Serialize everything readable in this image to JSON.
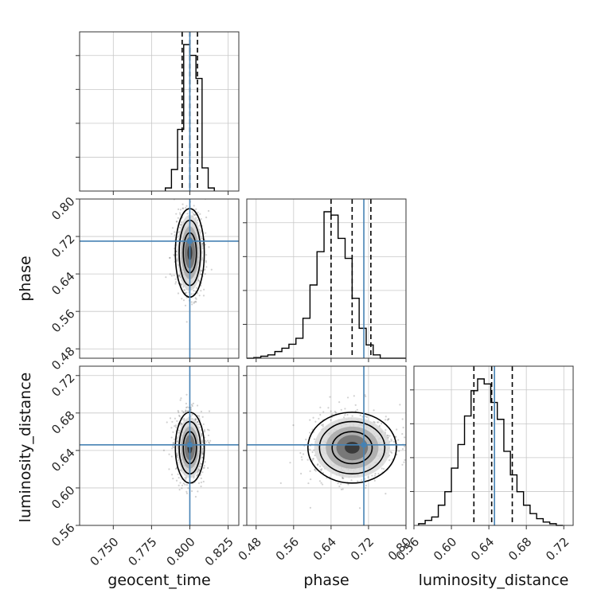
{
  "chart_data": {
    "type": "corner",
    "parameters": [
      "geocent_time",
      "phase",
      "luminosity_distance"
    ],
    "ranges": {
      "geocent_time": [
        0.728,
        0.832
      ],
      "phase": [
        0.46,
        0.8
      ],
      "luminosity_distance": [
        0.56,
        0.73
      ]
    },
    "ticks": {
      "geocent_time": [
        "0.750",
        "0.775",
        "0.800",
        "0.825"
      ],
      "phase": [
        "0.48",
        "0.56",
        "0.64",
        "0.72",
        "0.80"
      ],
      "luminosity_distance": [
        "0.56",
        "0.60",
        "0.64",
        "0.68",
        "0.72"
      ]
    },
    "truths": {
      "geocent_time": 0.8,
      "phase": 0.71,
      "luminosity_distance": 0.646
    },
    "quantiles": {
      "geocent_time": [
        0.795,
        0.8,
        0.805
      ],
      "phase": [
        0.64,
        0.685,
        0.725
      ],
      "luminosity_distance": [
        0.624,
        0.643,
        0.665
      ]
    },
    "histograms": {
      "geocent_time": {
        "bins": [
          0.784,
          0.788,
          0.792,
          0.796,
          0.8,
          0.804,
          0.808,
          0.812,
          0.816
        ],
        "counts": [
          2,
          14,
          40,
          95,
          88,
          73,
          15,
          2
        ]
      },
      "phase": {
        "bins": [
          0.46,
          0.475,
          0.49,
          0.505,
          0.52,
          0.535,
          0.55,
          0.565,
          0.58,
          0.595,
          0.61,
          0.625,
          0.64,
          0.655,
          0.67,
          0.685,
          0.7,
          0.715,
          0.73,
          0.745,
          0.76,
          0.775,
          0.79,
          0.8
        ],
        "counts": [
          0,
          1,
          3,
          5,
          10,
          15,
          21,
          30,
          60,
          110,
          160,
          220,
          215,
          180,
          150,
          90,
          45,
          20,
          5,
          0,
          0,
          0,
          0
        ]
      },
      "luminosity_distance": {
        "bins": [
          0.565,
          0.572,
          0.579,
          0.586,
          0.593,
          0.6,
          0.607,
          0.614,
          0.621,
          0.628,
          0.635,
          0.642,
          0.649,
          0.656,
          0.663,
          0.67,
          0.677,
          0.684,
          0.691,
          0.698,
          0.705,
          0.712,
          0.719
        ],
        "counts": [
          1,
          3,
          5,
          12,
          20,
          34,
          48,
          65,
          80,
          87,
          84,
          73,
          63,
          44,
          30,
          20,
          12,
          7,
          4,
          2,
          1,
          0
        ]
      }
    },
    "colors": {
      "truth": "#4682b4",
      "hist": "#000000",
      "grid": "#c8c8c8"
    },
    "grid": true
  }
}
